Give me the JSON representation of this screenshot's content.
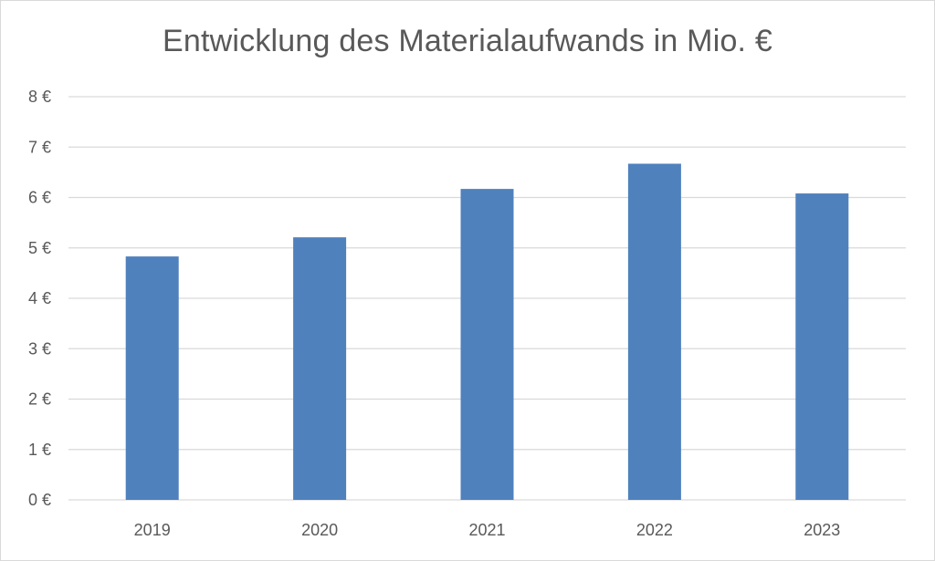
{
  "chart_data": {
    "type": "bar",
    "title": "Entwicklung des Materialaufwands in Mio. €",
    "categories": [
      "2019",
      "2020",
      "2021",
      "2022",
      "2023"
    ],
    "values": [
      4.83,
      5.21,
      6.17,
      6.67,
      6.08
    ],
    "ylim": [
      0,
      8
    ],
    "y_ticks": [
      "0 €",
      "1 €",
      "2 €",
      "3 €",
      "4 €",
      "5 €",
      "6 €",
      "7 €",
      "8 €"
    ],
    "xlabel": "",
    "ylabel": "",
    "grid": true,
    "legend": "none",
    "bar_color": "#4f81bd",
    "grid_color": "#d9d9d9",
    "text_color": "#595959"
  }
}
